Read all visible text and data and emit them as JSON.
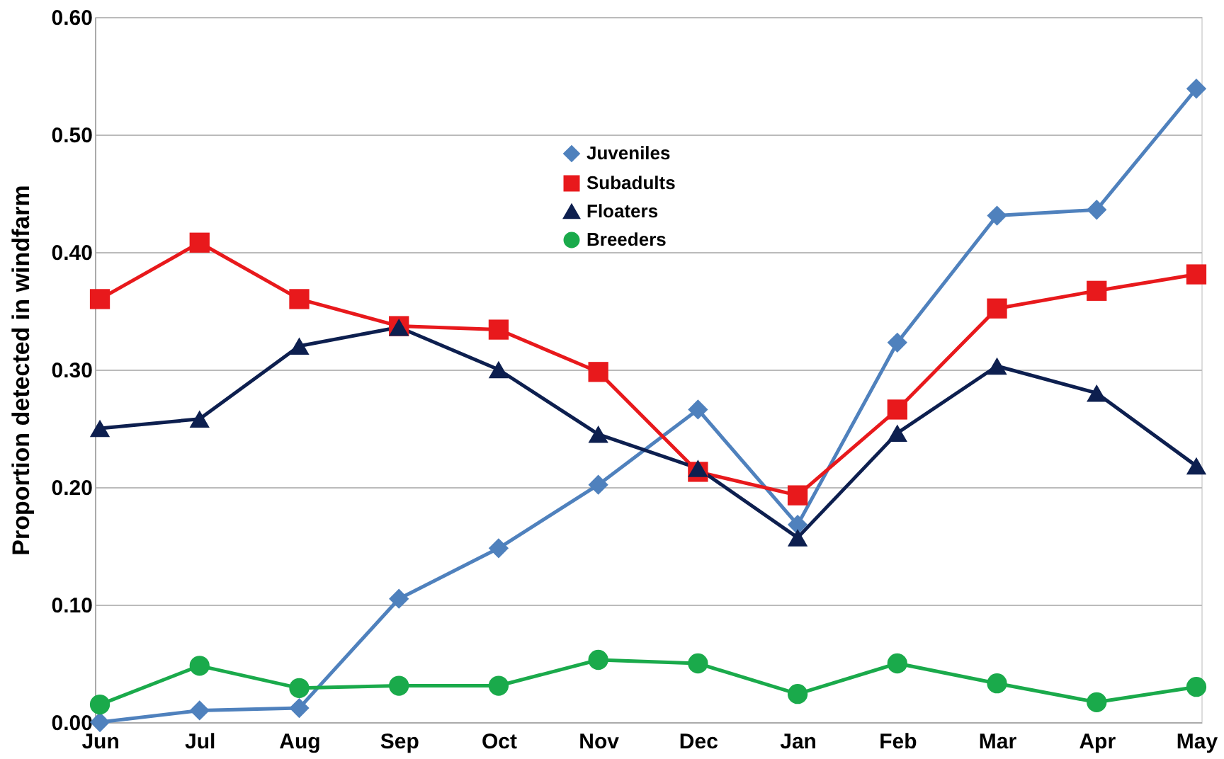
{
  "chart_data": {
    "type": "line",
    "ylabel": "Proportion detected in windfarm",
    "categories": [
      "Jun",
      "Jul",
      "Aug",
      "Sep",
      "Oct",
      "Nov",
      "Dec",
      "Jan",
      "Feb",
      "Mar",
      "Apr",
      "May"
    ],
    "series": [
      {
        "name": "Juveniles",
        "color": "#4f81bd",
        "marker": "diamond",
        "values": [
          0.0,
          0.01,
          0.012,
          0.105,
          0.148,
          0.202,
          0.266,
          0.168,
          0.323,
          0.431,
          0.436,
          0.539
        ]
      },
      {
        "name": "Subadults",
        "color": "#e8191c",
        "marker": "square",
        "values": [
          0.36,
          0.408,
          0.36,
          0.337,
          0.334,
          0.298,
          0.213,
          0.193,
          0.266,
          0.352,
          0.367,
          0.381
        ]
      },
      {
        "name": "Floaters",
        "color": "#0d1f4f",
        "marker": "triangle",
        "values": [
          0.25,
          0.258,
          0.32,
          0.336,
          0.3,
          0.245,
          0.216,
          0.157,
          0.246,
          0.303,
          0.28,
          0.218
        ]
      },
      {
        "name": "Breeders",
        "color": "#1aaa4b",
        "marker": "circle",
        "values": [
          0.015,
          0.048,
          0.029,
          0.031,
          0.031,
          0.053,
          0.05,
          0.024,
          0.05,
          0.033,
          0.017,
          0.03
        ]
      }
    ],
    "ylim": [
      0,
      0.6
    ],
    "yticks": [
      {
        "value": 0,
        "label": "0.00"
      },
      {
        "value": 0.1,
        "label": "0.10"
      },
      {
        "value": 0.2,
        "label": "0.20"
      },
      {
        "value": 0.3,
        "label": "0.30"
      },
      {
        "value": 0.4,
        "label": "0.40"
      },
      {
        "value": 0.5,
        "label": "0.50"
      },
      {
        "value": 0.6,
        "label": "0.60"
      }
    ],
    "grid": "y",
    "legend": "top",
    "line_style": "solid"
  }
}
